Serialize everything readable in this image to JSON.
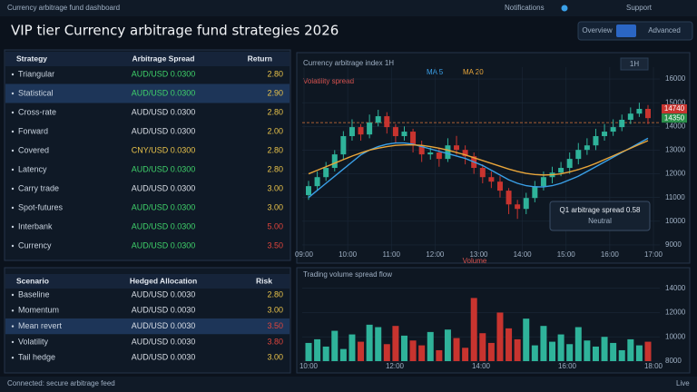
{
  "topbar": {
    "brand": "Currency arbitrage fund dashboard",
    "nav": [
      "Notifications",
      "Support"
    ]
  },
  "header": {
    "title": "VIP tier Currency arbitrage fund strategies 2026",
    "buttons": [
      "Overview",
      "Advanced"
    ]
  },
  "table1": {
    "columns": [
      "Strategy",
      "Arbitrage Spread",
      "Return"
    ],
    "rows": [
      [
        "Triangular",
        "AUD/USD 0.0300",
        "2.80"
      ],
      [
        "Statistical",
        "AUD/USD 0.0300",
        "2.90"
      ],
      [
        "Cross-rate",
        "AUD/USD 0.0300",
        "2.80"
      ],
      [
        "Forward",
        "AUD/USD 0.0300",
        "2.00"
      ],
      [
        "Covered",
        "CNY/USD 0.0300",
        "2.80"
      ],
      [
        "Latency",
        "AUD/USD 0.0300",
        "2.80"
      ],
      [
        "Carry trade",
        "AUD/USD 0.0300",
        "3.00"
      ],
      [
        "Spot-futures",
        "AUD/USD 0.0300",
        "3.00"
      ],
      [
        "Interbank",
        "AUD/USD 0.0300",
        "5.00"
      ],
      [
        "Currency",
        "AUD/USD 0.0300",
        "3.50"
      ]
    ],
    "colors": [
      [
        "#3fd16a",
        "#e8c24a"
      ],
      [
        "#3fd16a",
        "#e8c24a"
      ],
      [
        "#d9dee6",
        "#e8c24a"
      ],
      [
        "#d9dee6",
        "#e8c24a"
      ],
      [
        "#e8c24a",
        "#e8c24a"
      ],
      [
        "#3fd16a",
        "#e8c24a"
      ],
      [
        "#d9dee6",
        "#e8c24a"
      ],
      [
        "#3fd16a",
        "#e8c24a"
      ],
      [
        "#3fd16a",
        "#e0453c"
      ],
      [
        "#3fd16a",
        "#e0453c"
      ]
    ],
    "highlight": 1
  },
  "table2": {
    "columns": [
      "Scenario",
      "Hedged Allocation",
      "Risk"
    ],
    "rows": [
      [
        "Baseline",
        "AUD/USD 0.0030",
        "2.80"
      ],
      [
        "Momentum",
        "AUD/USD 0.0030",
        "3.00"
      ],
      [
        "Mean revert",
        "AUD/USD 0.0030",
        "3.50"
      ],
      [
        "Volatility",
        "AUD/USD 0.0030",
        "3.80"
      ],
      [
        "Tail hedge",
        "AUD/USD 0.0030",
        "3.00"
      ]
    ],
    "colors": [
      [
        "#d9dee6",
        "#e8c24a"
      ],
      [
        "#d9dee6",
        "#e8c24a"
      ],
      [
        "#d9dee6",
        "#e0453c"
      ],
      [
        "#d9dee6",
        "#e0453c"
      ],
      [
        "#d9dee6",
        "#e8c24a"
      ]
    ],
    "highlight": 2
  },
  "chart_data": [
    {
      "type": "candlestick",
      "title": "Currency arbitrage index 1H",
      "subtitle": "Volatility spread",
      "interval": "1H",
      "open": [
        11100,
        11480,
        11860,
        12250,
        12820,
        13590,
        13970,
        13660,
        14160,
        14430,
        13970,
        13590,
        13780,
        13200,
        12820,
        12900,
        12630,
        13200,
        13010,
        12740,
        12250,
        11860,
        11670,
        11290,
        10710,
        10520,
        10980,
        11480,
        11860,
        12050,
        12250,
        12630,
        13010,
        13200,
        13590,
        13780,
        13970,
        14280,
        14540,
        14740
      ],
      "high": [
        11700,
        12100,
        12500,
        13000,
        13800,
        14300,
        14100,
        14500,
        14700,
        14600,
        14100,
        14000,
        13900,
        13400,
        13100,
        13100,
        13500,
        13600,
        13200,
        12900,
        12400,
        12100,
        11900,
        11400,
        10900,
        11200,
        11700,
        12100,
        12300,
        12500,
        12900,
        13300,
        13500,
        13900,
        14100,
        14300,
        14500,
        14800,
        15000,
        14900
      ],
      "low": [
        10900,
        11300,
        11700,
        12100,
        12600,
        13400,
        13400,
        13500,
        14000,
        13700,
        13300,
        13400,
        12900,
        12500,
        12600,
        12300,
        12500,
        12800,
        12400,
        12000,
        11600,
        11400,
        11000,
        10300,
        10100,
        10300,
        10800,
        11300,
        11600,
        11900,
        12000,
        12400,
        12800,
        13000,
        13400,
        13600,
        13800,
        14100,
        14400,
        14100
      ],
      "close": [
        11480,
        11860,
        12250,
        12820,
        13590,
        13970,
        13660,
        14160,
        14430,
        13970,
        13590,
        13780,
        13200,
        12820,
        12900,
        12630,
        13200,
        13010,
        12740,
        12250,
        11860,
        11670,
        11290,
        10710,
        10520,
        10980,
        11480,
        11860,
        12050,
        12250,
        12630,
        13010,
        13200,
        13590,
        13780,
        13970,
        14280,
        14540,
        14740,
        14350
      ],
      "up_color": "#2fb39a",
      "down_color": "#c8342f",
      "series": [
        {
          "name": "MA 5",
          "color": "#3aa0e8",
          "values": [
            11000,
            11300,
            11600,
            11900,
            12200,
            12500,
            12800,
            13000,
            13150,
            13250,
            13300,
            13300,
            13250,
            13150,
            13050,
            12950,
            12850,
            12750,
            12650,
            12500,
            12350,
            12150,
            11950,
            11750,
            11600,
            11500,
            11450,
            11450,
            11500,
            11600,
            11750,
            11900,
            12100,
            12300,
            12500,
            12700,
            12900,
            13100,
            13300,
            13500
          ]
        },
        {
          "name": "MA 20",
          "color": "#e8a53a",
          "values": [
            12000,
            12150,
            12300,
            12450,
            12600,
            12750,
            12880,
            13000,
            13080,
            13150,
            13200,
            13220,
            13220,
            13200,
            13150,
            13080,
            13000,
            12900,
            12800,
            12680,
            12560,
            12440,
            12320,
            12200,
            12100,
            12020,
            11970,
            11950,
            11960,
            12000,
            12080,
            12180,
            12300,
            12440,
            12600,
            12760,
            12920,
            13080,
            13240,
            13400
          ]
        }
      ],
      "reference": 14160,
      "ylim": [
        8500,
        16500
      ],
      "yticks": [
        9000,
        10000,
        11000,
        12000,
        13000,
        14000,
        15000,
        16000
      ],
      "xticks": [
        "09:00",
        "10:00",
        "11:00",
        "12:00",
        "13:00",
        "14:00",
        "15:00",
        "16:00",
        "17:00"
      ],
      "axis_note": "Volume",
      "annotation": {
        "title": "Q1 arbitrage spread 0.58",
        "subtitle": "Neutral"
      },
      "price_tags": [
        {
          "value": 14740,
          "color": "#c8342f"
        },
        {
          "value": 14350,
          "color": "#2a8f4a"
        }
      ]
    },
    {
      "type": "bar",
      "title": "Trading volume spread flow",
      "values": [
        9500,
        9800,
        9200,
        10500,
        9000,
        10200,
        9600,
        11000,
        10800,
        9400,
        10900,
        10100,
        9700,
        9300,
        10400,
        8900,
        10600,
        9900,
        9100,
        13200,
        10300,
        9500,
        12000,
        10700,
        9800,
        11500,
        9300,
        10900,
        9600,
        10200,
        9400,
        10800,
        9700,
        9200,
        10000,
        9500,
        8900,
        9800,
        9300,
        9600
      ],
      "ylim": [
        8000,
        14500
      ],
      "yticks": [
        8000,
        10000,
        12000,
        14000
      ],
      "xticks": [
        "10:00",
        "12:00",
        "14:00",
        "16:00",
        "18:00"
      ]
    }
  ],
  "footer": {
    "status": "Connected: secure arbitrage feed",
    "live": "Live"
  }
}
